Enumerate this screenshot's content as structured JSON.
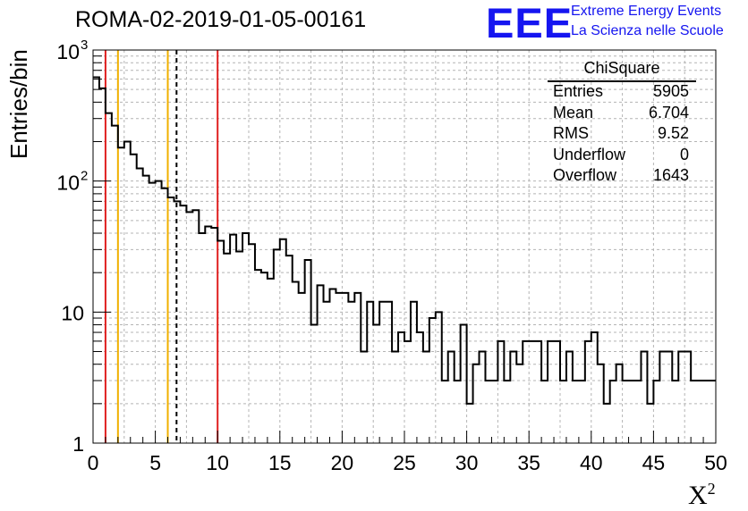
{
  "header": {
    "title": "ROMA-02-2019-01-05-00161",
    "logo_text": "EEE",
    "logo_line1": "Extreme Energy Events",
    "logo_line2": "La Scienza nelle Scuole"
  },
  "stats_box": {
    "name": "ChiSquare",
    "rows": [
      {
        "label": "Entries",
        "value": "5905"
      },
      {
        "label": "Mean",
        "value": "6.704"
      },
      {
        "label": "RMS",
        "value": "9.52"
      },
      {
        "label": "Underflow",
        "value": "0"
      },
      {
        "label": "Overflow",
        "value": "1643"
      }
    ]
  },
  "chart_data": {
    "type": "step-histogram",
    "title": "ROMA-02-2019-01-05-00161",
    "xlabel": "X",
    "xlabel_superscript": "2",
    "ylabel": "Entries/bin",
    "xlim": [
      0,
      50
    ],
    "ylim": [
      1,
      1000
    ],
    "yscale": "log",
    "grid": true,
    "bin_width": 0.5,
    "x_ticks": [
      "0",
      "5",
      "10",
      "15",
      "20",
      "25",
      "30",
      "35",
      "40",
      "45",
      "50"
    ],
    "y_ticks": [
      {
        "value": 1,
        "label": "1"
      },
      {
        "value": 10,
        "label": "10"
      },
      {
        "value": 100,
        "label": "10",
        "exp": "2"
      },
      {
        "value": 1000,
        "label": "10",
        "exp": "3"
      }
    ],
    "values": [
      620,
      510,
      330,
      265,
      180,
      200,
      160,
      125,
      110,
      97,
      100,
      88,
      75,
      70,
      65,
      58,
      60,
      40,
      45,
      44,
      35,
      28,
      39,
      29,
      40,
      33,
      21,
      20,
      18,
      30,
      36,
      27,
      17,
      14,
      25,
      8,
      16,
      12,
      15,
      14,
      14,
      12,
      14,
      5,
      12,
      8,
      12,
      12,
      5,
      7,
      6,
      12,
      7,
      5,
      9,
      10,
      3,
      5,
      3,
      8,
      2,
      4,
      5,
      3,
      3,
      6,
      3,
      5,
      4,
      6,
      6,
      6,
      3,
      6,
      6,
      3,
      5,
      3,
      3,
      6,
      7,
      4,
      2,
      3,
      4,
      3,
      3,
      3,
      5,
      2,
      3,
      5,
      5,
      3,
      5,
      5,
      3,
      3,
      3,
      3
    ]
  },
  "vertical_lines": [
    {
      "x": 1.0,
      "color": "#e02020",
      "style": "solid"
    },
    {
      "x": 2.0,
      "color": "#f0b000",
      "style": "solid"
    },
    {
      "x": 6.0,
      "color": "#f0b000",
      "style": "solid"
    },
    {
      "x": 6.704,
      "color": "#000000",
      "style": "dashed"
    },
    {
      "x": 10.0,
      "color": "#e02020",
      "style": "solid"
    }
  ],
  "colors": {
    "histogram": "#000000",
    "grid": "#b4b4b4",
    "logo": "#1515f0"
  }
}
